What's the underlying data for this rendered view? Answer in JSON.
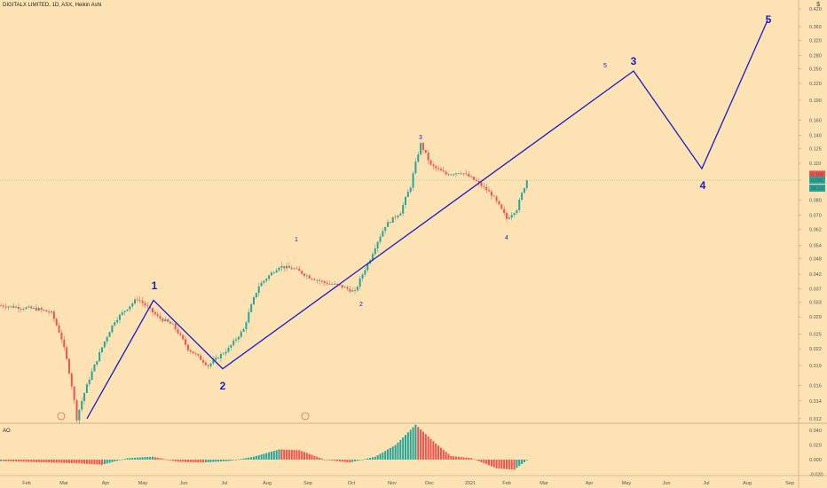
{
  "header": {
    "title": "DIGITALX LIMITED, 1D, ASX, Heikin Ashi",
    "indicator": "AO"
  },
  "colors": {
    "background": "#fde3b4",
    "up": "#26a69a",
    "down": "#ef5350",
    "wave": "#1a1ac8",
    "ao_up": "#26a69a",
    "ao_down": "#ef5350",
    "price_badge": "#ef5350",
    "price_badge2": "#26a69a"
  },
  "chart_data": {
    "type": "candlestick",
    "scale": "log",
    "price_ticks": [
      "0.420",
      "0.360",
      "0.320",
      "0.280",
      "0.250",
      "0.220",
      "0.190",
      "0.160",
      "0.140",
      "0.125",
      "0.110",
      "0.095",
      "0.080",
      "0.070",
      "0.062",
      "0.054",
      "0.048",
      "0.042",
      "0.037",
      "0.033",
      "0.029",
      "0.025",
      "0.022",
      "0.019",
      "0.016",
      "0.014",
      "0.012"
    ],
    "ao_ticks": [
      "0.040",
      "0.020",
      "0.000",
      "-0.020"
    ],
    "x_ticks": [
      "Feb",
      "Mar",
      "Apr",
      "May",
      "Jun",
      "Jul",
      "Aug",
      "Sep",
      "Oct",
      "Nov",
      "Dec",
      "2021",
      "Feb",
      "Mar",
      "Apr",
      "May",
      "Jun",
      "Jul",
      "Aug",
      "Sep"
    ],
    "price_badges": [
      "0.100",
      "0.095",
      "08:33"
    ],
    "wave_labels": [
      {
        "text": "1",
        "size": "large"
      },
      {
        "text": "2",
        "size": "large"
      },
      {
        "text": "3",
        "size": "large"
      },
      {
        "text": "4",
        "size": "large"
      },
      {
        "text": "5",
        "size": "large"
      },
      {
        "text": "1",
        "size": "small"
      },
      {
        "text": "2",
        "size": "small"
      },
      {
        "text": "3",
        "size": "small"
      },
      {
        "text": "4",
        "size": "small"
      },
      {
        "text": "5",
        "size": "small"
      }
    ],
    "wave_path_prices": [
      0.012,
      0.0335,
      0.0185,
      0.245,
      0.105,
      0.38
    ],
    "price_anchors": [
      [
        0,
        0.032
      ],
      [
        15,
        0.031
      ],
      [
        20,
        0.03
      ],
      [
        24,
        0.024
      ],
      [
        30,
        0.012
      ],
      [
        38,
        0.02
      ],
      [
        45,
        0.028
      ],
      [
        54,
        0.034
      ],
      [
        62,
        0.029
      ],
      [
        68,
        0.027
      ],
      [
        74,
        0.022
      ],
      [
        82,
        0.019
      ],
      [
        90,
        0.022
      ],
      [
        96,
        0.026
      ],
      [
        102,
        0.038
      ],
      [
        110,
        0.045
      ],
      [
        116,
        0.044
      ],
      [
        122,
        0.041
      ],
      [
        128,
        0.039
      ],
      [
        134,
        0.038
      ],
      [
        140,
        0.036
      ],
      [
        146,
        0.048
      ],
      [
        152,
        0.064
      ],
      [
        158,
        0.072
      ],
      [
        162,
        0.09
      ],
      [
        166,
        0.13
      ],
      [
        170,
        0.108
      ],
      [
        176,
        0.1
      ],
      [
        182,
        0.102
      ],
      [
        188,
        0.094
      ],
      [
        194,
        0.084
      ],
      [
        200,
        0.068
      ],
      [
        204,
        0.074
      ],
      [
        208,
        0.095
      ]
    ],
    "ao_anchors": [
      [
        0,
        -0.002
      ],
      [
        30,
        -0.005
      ],
      [
        40,
        -0.007
      ],
      [
        50,
        0.002
      ],
      [
        60,
        0.004
      ],
      [
        70,
        -0.003
      ],
      [
        80,
        -0.004
      ],
      [
        90,
        -0.002
      ],
      [
        100,
        0.004
      ],
      [
        110,
        0.014
      ],
      [
        118,
        0.013
      ],
      [
        128,
        0.0
      ],
      [
        138,
        -0.004
      ],
      [
        148,
        0.004
      ],
      [
        156,
        0.02
      ],
      [
        164,
        0.048
      ],
      [
        172,
        0.022
      ],
      [
        178,
        0.005
      ],
      [
        186,
        0.002
      ],
      [
        196,
        -0.012
      ],
      [
        203,
        -0.014
      ],
      [
        208,
        -0.001
      ]
    ]
  }
}
